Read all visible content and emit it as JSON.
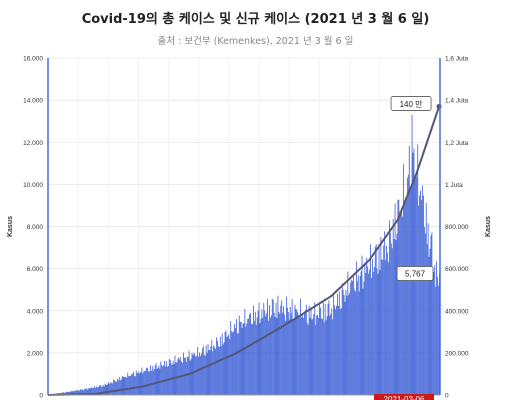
{
  "chart_data": {
    "type": "bar+line",
    "title": "Covid-19의 총 케이스 및 신규 케이스 (2021 년 3 월 6 일)",
    "subtitle": "출처 : 보건부 (Kemenkes), 2021 년 3 월 6 일",
    "ylabel_left": "Kasus",
    "ylabel_right": "Kasus",
    "ylim_left": [
      0,
      16000
    ],
    "ylim_right": [
      0,
      1600000
    ],
    "yticks_left": [
      "0",
      "2.000",
      "4.000",
      "6.000",
      "8.000",
      "10.000",
      "12.000",
      "14.000",
      "16.000"
    ],
    "yticks_right": [
      "0",
      "200.000",
      "400.000",
      "600.000",
      "800.000",
      "1 Juta",
      "1,2 Juta",
      "1,4 Juta",
      "1,6 Juta"
    ],
    "series": [
      {
        "kind": "bar",
        "color": "#3b5fd6",
        "anchors": [
          [
            0,
            0
          ],
          [
            5,
            50
          ],
          [
            20,
            150
          ],
          [
            40,
            300
          ],
          [
            60,
            500
          ],
          [
            80,
            900
          ],
          [
            100,
            1200
          ],
          [
            120,
            1500
          ],
          [
            140,
            1800
          ],
          [
            160,
            2100
          ],
          [
            180,
            2600
          ],
          [
            200,
            3500
          ],
          [
            220,
            4000
          ],
          [
            240,
            4400
          ],
          [
            260,
            4200
          ],
          [
            280,
            4000
          ],
          [
            300,
            4300
          ],
          [
            320,
            5500
          ],
          [
            340,
            6500
          ],
          [
            360,
            7500
          ],
          [
            370,
            9000
          ],
          [
            380,
            10500
          ],
          [
            385,
            12500
          ],
          [
            390,
            11000
          ],
          [
            395,
            10000
          ],
          [
            400,
            8500
          ],
          [
            405,
            7500
          ],
          [
            410,
            6000
          ],
          [
            414,
            5767
          ]
        ]
      },
      {
        "kind": "line",
        "color": "#555577",
        "anchors": [
          [
            0,
            0
          ],
          [
            50,
            5000
          ],
          [
            100,
            40000
          ],
          [
            150,
            100000
          ],
          [
            200,
            200000
          ],
          [
            250,
            330000
          ],
          [
            300,
            470000
          ],
          [
            340,
            640000
          ],
          [
            370,
            830000
          ],
          [
            390,
            1050000
          ],
          [
            405,
            1250000
          ],
          [
            414,
            1370000
          ]
        ]
      }
    ],
    "callouts": {
      "total_label": "140 만",
      "daily_label": "5,767",
      "date_label": "2021-03-06"
    }
  }
}
